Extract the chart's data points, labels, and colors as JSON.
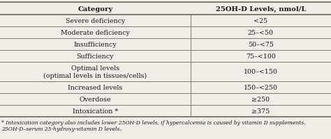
{
  "col1_header": "Category",
  "col2_header": "25OH-D Levels, nmol/L",
  "rows": [
    [
      "Severe deficiency",
      "<25"
    ],
    [
      "Moderate deficiency",
      "25–<50"
    ],
    [
      "Insufficiency",
      "50–<75"
    ],
    [
      "Sufficiency",
      "75–<100"
    ],
    [
      "Optimal levels\n(optimal levels in tissues/cells)",
      "100–<150"
    ],
    [
      "Increased levels",
      "150–<250"
    ],
    [
      "Overdose",
      "≥250"
    ],
    [
      "Intoxication *",
      "≥375"
    ]
  ],
  "footnote1": "* Intoxication category also includes lower 25OH-D levels, if hypercalcemia is caused by vitamin D supplements.",
  "footnote2": "25OH-D–serum 25-hydroxy-vitamin D levels.",
  "bg_color": "#f0ede8",
  "line_color": "#7a7a72",
  "text_color": "#1a1a1a",
  "header_fontsize": 7.2,
  "body_fontsize": 6.8,
  "footnote_fontsize": 5.5,
  "col_split": 0.575
}
